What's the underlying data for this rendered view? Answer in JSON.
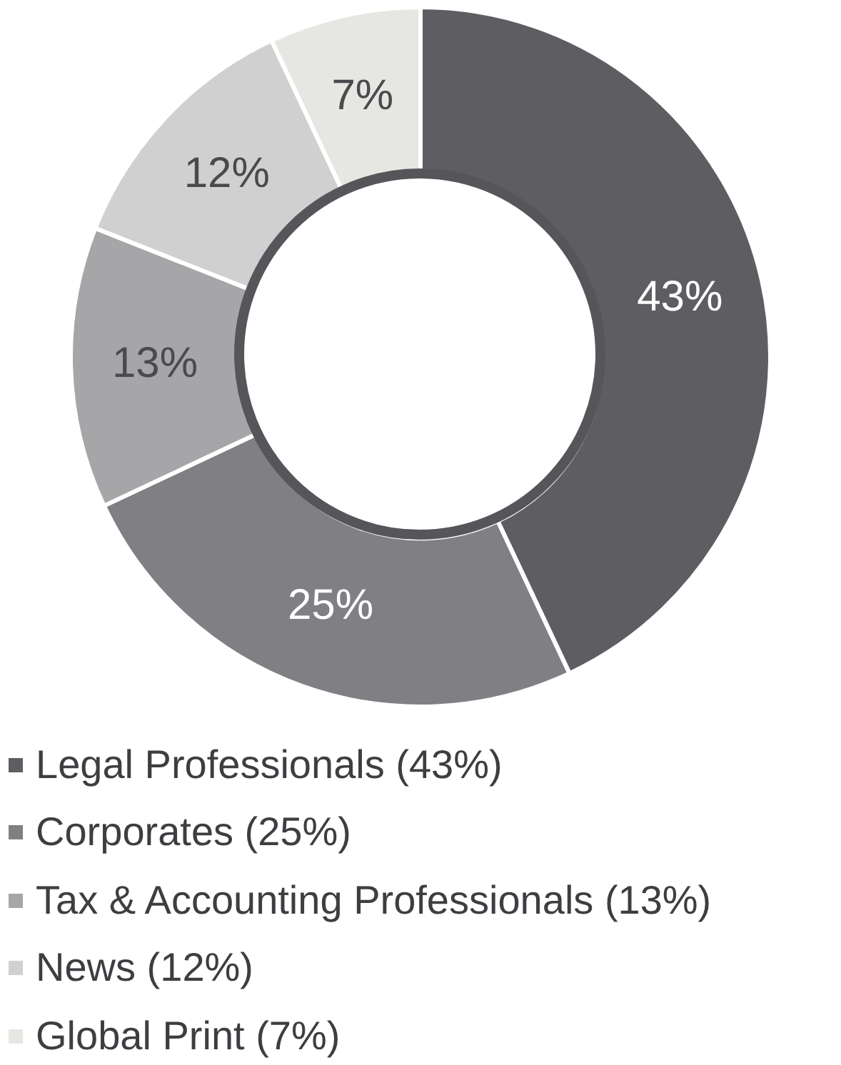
{
  "chart_data": {
    "type": "donut",
    "categories": [
      "Legal Professionals (43%)",
      "Corporates (25%)",
      "Tax & Accounting Professionals (13%)",
      "News (12%)",
      "Global Print (7%)"
    ],
    "values": [
      43,
      25,
      13,
      12,
      7
    ],
    "colors": [
      "#5e5e62",
      "#808084",
      "#a6a6a8",
      "#d0d0d0",
      "#e6e6e3"
    ],
    "value_labels": [
      "43%",
      "25%",
      "13%",
      "12%",
      "7%"
    ],
    "legend": "bottom"
  }
}
